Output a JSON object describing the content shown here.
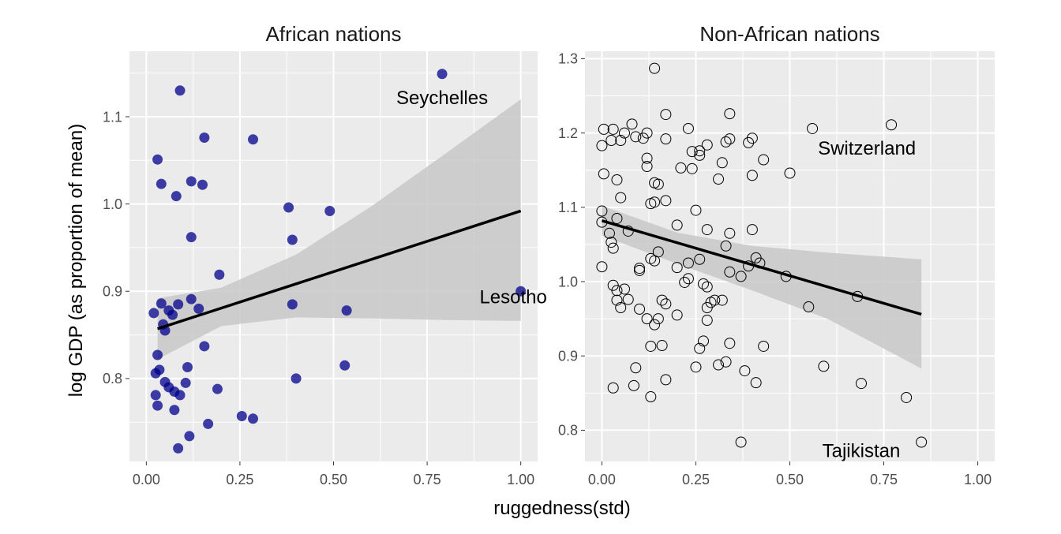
{
  "chart_data": {
    "type": "scatter",
    "xlabel": "ruggedness(std)",
    "ylabel": "log GDP (as proportion of mean)",
    "grid": true,
    "legend": "none",
    "colors": {
      "panel_bg": "#ebebeb",
      "grid": "#ffffff",
      "african_points": "#00008b",
      "non_african_points": "#000000",
      "fit_line": "#000000",
      "ribbon": "#c8c8c8"
    },
    "panels": [
      {
        "title": "African nations",
        "xlim": [
          -0.045,
          1.045
        ],
        "ylim": [
          0.705,
          1.175
        ],
        "xticks": [
          0.0,
          0.25,
          0.5,
          0.75,
          1.0
        ],
        "xtick_labels": [
          "0.00",
          "0.25",
          "0.50",
          "0.75",
          "1.00"
        ],
        "yticks": [
          0.8,
          0.9,
          1.0,
          1.1
        ],
        "ytick_labels": [
          "0.8",
          "0.9",
          "1.0",
          "1.1"
        ],
        "point_style": "filled",
        "points": [
          {
            "x": 0.09,
            "y": 1.13
          },
          {
            "x": 0.03,
            "y": 1.051
          },
          {
            "x": 0.04,
            "y": 1.023
          },
          {
            "x": 0.08,
            "y": 1.009
          },
          {
            "x": 0.12,
            "y": 1.026
          },
          {
            "x": 0.15,
            "y": 1.022
          },
          {
            "x": 0.155,
            "y": 1.076
          },
          {
            "x": 0.285,
            "y": 1.074
          },
          {
            "x": 0.12,
            "y": 0.962
          },
          {
            "x": 0.195,
            "y": 0.919
          },
          {
            "x": 0.38,
            "y": 0.996
          },
          {
            "x": 0.49,
            "y": 0.992
          },
          {
            "x": 0.39,
            "y": 0.959
          },
          {
            "x": 0.39,
            "y": 0.885
          },
          {
            "x": 0.535,
            "y": 0.878
          },
          {
            "x": 0.79,
            "y": 1.149
          },
          {
            "x": 1.0,
            "y": 0.9
          },
          {
            "x": 0.02,
            "y": 0.875
          },
          {
            "x": 0.04,
            "y": 0.886
          },
          {
            "x": 0.045,
            "y": 0.862
          },
          {
            "x": 0.05,
            "y": 0.855
          },
          {
            "x": 0.06,
            "y": 0.878
          },
          {
            "x": 0.07,
            "y": 0.873
          },
          {
            "x": 0.085,
            "y": 0.885
          },
          {
            "x": 0.12,
            "y": 0.891
          },
          {
            "x": 0.14,
            "y": 0.88
          },
          {
            "x": 0.03,
            "y": 0.827
          },
          {
            "x": 0.155,
            "y": 0.837
          },
          {
            "x": 0.025,
            "y": 0.806
          },
          {
            "x": 0.035,
            "y": 0.81
          },
          {
            "x": 0.05,
            "y": 0.796
          },
          {
            "x": 0.06,
            "y": 0.79
          },
          {
            "x": 0.075,
            "y": 0.785
          },
          {
            "x": 0.09,
            "y": 0.781
          },
          {
            "x": 0.105,
            "y": 0.795
          },
          {
            "x": 0.11,
            "y": 0.813
          },
          {
            "x": 0.025,
            "y": 0.781
          },
          {
            "x": 0.03,
            "y": 0.769
          },
          {
            "x": 0.075,
            "y": 0.764
          },
          {
            "x": 0.19,
            "y": 0.788
          },
          {
            "x": 0.4,
            "y": 0.8
          },
          {
            "x": 0.53,
            "y": 0.815
          },
          {
            "x": 0.255,
            "y": 0.757
          },
          {
            "x": 0.285,
            "y": 0.754
          },
          {
            "x": 0.165,
            "y": 0.748
          },
          {
            "x": 0.115,
            "y": 0.734
          },
          {
            "x": 0.085,
            "y": 0.72
          }
        ],
        "fit": {
          "x": [
            0.03,
            1.0
          ],
          "y": [
            0.857,
            0.992
          ]
        },
        "ribbon": {
          "x": [
            0.03,
            0.2,
            0.4,
            0.6,
            0.8,
            1.0
          ],
          "lower": [
            0.822,
            0.86,
            0.87,
            0.869,
            0.867,
            0.866
          ],
          "upper": [
            0.892,
            0.904,
            0.942,
            0.997,
            1.058,
            1.12
          ]
        },
        "annotations": [
          {
            "text": "Seychelles",
            "x": 0.79,
            "y": 1.122
          },
          {
            "text": "Lesotho",
            "x": 0.98,
            "y": 0.894
          }
        ]
      },
      {
        "title": "Non-African nations",
        "xlim": [
          -0.045,
          1.045
        ],
        "ylim": [
          0.758,
          1.31
        ],
        "xticks": [
          0.0,
          0.25,
          0.5,
          0.75,
          1.0
        ],
        "xtick_labels": [
          "0.00",
          "0.25",
          "0.50",
          "0.75",
          "1.00"
        ],
        "yticks": [
          0.8,
          0.9,
          1.0,
          1.1,
          1.2,
          1.3
        ],
        "ytick_labels": [
          "0.8",
          "0.9",
          "1.0",
          "1.1",
          "1.2",
          "1.3"
        ],
        "point_style": "hollow",
        "points": [
          {
            "x": 0.14,
            "y": 1.287
          },
          {
            "x": 0.08,
            "y": 1.212
          },
          {
            "x": 0.17,
            "y": 1.225
          },
          {
            "x": 0.23,
            "y": 1.206
          },
          {
            "x": 0.34,
            "y": 1.226
          },
          {
            "x": 0.56,
            "y": 1.206
          },
          {
            "x": 0.77,
            "y": 1.211
          },
          {
            "x": 0.0,
            "y": 1.183
          },
          {
            "x": 0.005,
            "y": 1.205
          },
          {
            "x": 0.025,
            "y": 1.19
          },
          {
            "x": 0.03,
            "y": 1.205
          },
          {
            "x": 0.05,
            "y": 1.19
          },
          {
            "x": 0.06,
            "y": 1.2
          },
          {
            "x": 0.09,
            "y": 1.195
          },
          {
            "x": 0.11,
            "y": 1.193
          },
          {
            "x": 0.12,
            "y": 1.2
          },
          {
            "x": 0.17,
            "y": 1.192
          },
          {
            "x": 0.24,
            "y": 1.175
          },
          {
            "x": 0.26,
            "y": 1.176
          },
          {
            "x": 0.28,
            "y": 1.184
          },
          {
            "x": 0.33,
            "y": 1.188
          },
          {
            "x": 0.34,
            "y": 1.192
          },
          {
            "x": 0.39,
            "y": 1.187
          },
          {
            "x": 0.4,
            "y": 1.193
          },
          {
            "x": 0.26,
            "y": 1.17
          },
          {
            "x": 0.32,
            "y": 1.16
          },
          {
            "x": 0.43,
            "y": 1.164
          },
          {
            "x": 0.005,
            "y": 1.145
          },
          {
            "x": 0.04,
            "y": 1.137
          },
          {
            "x": 0.12,
            "y": 1.155
          },
          {
            "x": 0.12,
            "y": 1.166
          },
          {
            "x": 0.21,
            "y": 1.153
          },
          {
            "x": 0.24,
            "y": 1.152
          },
          {
            "x": 0.31,
            "y": 1.138
          },
          {
            "x": 0.4,
            "y": 1.143
          },
          {
            "x": 0.5,
            "y": 1.146
          },
          {
            "x": 0.14,
            "y": 1.133
          },
          {
            "x": 0.15,
            "y": 1.131
          },
          {
            "x": 0.05,
            "y": 1.113
          },
          {
            "x": 0.13,
            "y": 1.105
          },
          {
            "x": 0.14,
            "y": 1.107
          },
          {
            "x": 0.17,
            "y": 1.109
          },
          {
            "x": 0.25,
            "y": 1.096
          },
          {
            "x": 0.0,
            "y": 1.095
          },
          {
            "x": 0.0,
            "y": 1.08
          },
          {
            "x": 0.02,
            "y": 1.065
          },
          {
            "x": 0.04,
            "y": 1.085
          },
          {
            "x": 0.07,
            "y": 1.068
          },
          {
            "x": 0.2,
            "y": 1.076
          },
          {
            "x": 0.28,
            "y": 1.07
          },
          {
            "x": 0.34,
            "y": 1.065
          },
          {
            "x": 0.4,
            "y": 1.07
          },
          {
            "x": 0.025,
            "y": 1.053
          },
          {
            "x": 0.03,
            "y": 1.045
          },
          {
            "x": 0.15,
            "y": 1.04
          },
          {
            "x": 0.14,
            "y": 1.028
          },
          {
            "x": 0.13,
            "y": 1.031
          },
          {
            "x": 0.23,
            "y": 1.025
          },
          {
            "x": 0.26,
            "y": 1.03
          },
          {
            "x": 0.33,
            "y": 1.048
          },
          {
            "x": 0.41,
            "y": 1.032
          },
          {
            "x": 0.42,
            "y": 1.025
          },
          {
            "x": 0.1,
            "y": 1.018
          },
          {
            "x": 0.1,
            "y": 1.015
          },
          {
            "x": 0.2,
            "y": 1.019
          },
          {
            "x": 0.34,
            "y": 1.013
          },
          {
            "x": 0.37,
            "y": 1.007
          },
          {
            "x": 0.39,
            "y": 1.021
          },
          {
            "x": 0.49,
            "y": 1.007
          },
          {
            "x": 0.0,
            "y": 1.02
          },
          {
            "x": 0.03,
            "y": 0.995
          },
          {
            "x": 0.04,
            "y": 0.988
          },
          {
            "x": 0.06,
            "y": 0.99
          },
          {
            "x": 0.22,
            "y": 0.999
          },
          {
            "x": 0.23,
            "y": 1.004
          },
          {
            "x": 0.27,
            "y": 0.997
          },
          {
            "x": 0.28,
            "y": 0.993
          },
          {
            "x": 0.04,
            "y": 0.975
          },
          {
            "x": 0.05,
            "y": 0.965
          },
          {
            "x": 0.07,
            "y": 0.976
          },
          {
            "x": 0.16,
            "y": 0.975
          },
          {
            "x": 0.17,
            "y": 0.97
          },
          {
            "x": 0.29,
            "y": 0.972
          },
          {
            "x": 0.3,
            "y": 0.975
          },
          {
            "x": 0.32,
            "y": 0.975
          },
          {
            "x": 0.28,
            "y": 0.965
          },
          {
            "x": 0.55,
            "y": 0.966
          },
          {
            "x": 0.68,
            "y": 0.98
          },
          {
            "x": 0.1,
            "y": 0.963
          },
          {
            "x": 0.12,
            "y": 0.95
          },
          {
            "x": 0.15,
            "y": 0.95
          },
          {
            "x": 0.2,
            "y": 0.955
          },
          {
            "x": 0.14,
            "y": 0.942
          },
          {
            "x": 0.28,
            "y": 0.948
          },
          {
            "x": 0.27,
            "y": 0.92
          },
          {
            "x": 0.34,
            "y": 0.917
          },
          {
            "x": 0.43,
            "y": 0.913
          },
          {
            "x": 0.13,
            "y": 0.913
          },
          {
            "x": 0.16,
            "y": 0.914
          },
          {
            "x": 0.26,
            "y": 0.91
          },
          {
            "x": 0.31,
            "y": 0.888
          },
          {
            "x": 0.33,
            "y": 0.892
          },
          {
            "x": 0.25,
            "y": 0.885
          },
          {
            "x": 0.59,
            "y": 0.886
          },
          {
            "x": 0.09,
            "y": 0.884
          },
          {
            "x": 0.17,
            "y": 0.868
          },
          {
            "x": 0.38,
            "y": 0.88
          },
          {
            "x": 0.41,
            "y": 0.864
          },
          {
            "x": 0.69,
            "y": 0.863
          },
          {
            "x": 0.03,
            "y": 0.857
          },
          {
            "x": 0.085,
            "y": 0.86
          },
          {
            "x": 0.13,
            "y": 0.845
          },
          {
            "x": 0.81,
            "y": 0.844
          },
          {
            "x": 0.37,
            "y": 0.784
          },
          {
            "x": 0.85,
            "y": 0.784
          }
        ],
        "fit": {
          "x": [
            0.0,
            0.85
          ],
          "y": [
            1.082,
            0.956
          ]
        },
        "ribbon": {
          "x": [
            0.0,
            0.2,
            0.4,
            0.6,
            0.85
          ],
          "lower": [
            1.062,
            1.024,
            0.988,
            0.95,
            0.883
          ],
          "upper": [
            1.102,
            1.066,
            1.048,
            1.039,
            1.03
          ]
        },
        "annotations": [
          {
            "text": "Switzerland",
            "x": 0.705,
            "y": 1.18
          },
          {
            "text": "Tajikistan",
            "x": 0.69,
            "y": 0.773
          }
        ]
      }
    ]
  }
}
